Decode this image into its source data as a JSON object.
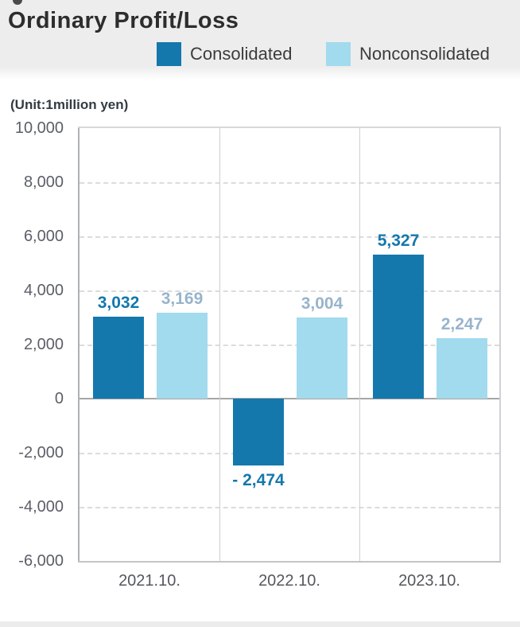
{
  "chart_data": {
    "type": "bar",
    "title": "Ordinary Profit/Loss",
    "unit_label": "(Unit:1million yen)",
    "categories": [
      "2021.10.",
      "2022.10.",
      "2023.10."
    ],
    "series": [
      {
        "name": "Consolidated",
        "color": "#1478ad",
        "label_color": "#1478ad",
        "values": [
          3032,
          -2474,
          5327
        ],
        "display_values": [
          "3,032",
          "- 2,474",
          "5,327"
        ]
      },
      {
        "name": "Nonconsolidated",
        "color": "#a2daee",
        "label_color": "#98b4cc",
        "values": [
          3169,
          3004,
          2247
        ],
        "display_values": [
          "3,169",
          "3,004",
          "2,247"
        ]
      }
    ],
    "ylim": [
      -6000,
      10000
    ],
    "ytick_step": 2000,
    "ytick_values": [
      10000,
      8000,
      6000,
      4000,
      2000,
      0,
      -2000,
      -4000,
      -6000
    ],
    "ytick_labels": [
      "10,000",
      "8,000",
      "6,000",
      "4,000",
      "2,000",
      "0",
      "-2,000",
      "-4,000",
      "-6,000"
    ],
    "legend_position": "top-right of title band",
    "grid": "horizontal dashed lines, vertical category separators",
    "colors": {
      "header_bg": "#ededed",
      "title_text": "#2d2d2d",
      "legend_text": "#3c3c3c",
      "axis_text": "#5b5f66",
      "grid_line": "#dcdcdc",
      "zero_line": "#a6a6a6",
      "plot_border": "#bfc2c4",
      "column_separator": "#cfcfcf"
    }
  }
}
